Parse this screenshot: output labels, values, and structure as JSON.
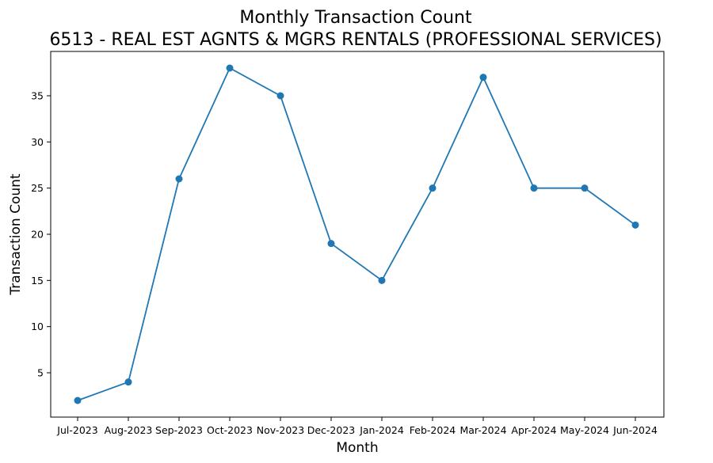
{
  "chart_data": {
    "type": "line",
    "title": "Monthly Transaction Count",
    "subtitle": "6513 - REAL EST AGNTS & MGRS RENTALS (PROFESSIONAL SERVICES)",
    "xlabel": "Month",
    "ylabel": "Transaction Count",
    "categories": [
      "Jul-2023",
      "Aug-2023",
      "Sep-2023",
      "Oct-2023",
      "Nov-2023",
      "Dec-2023",
      "Jan-2024",
      "Feb-2024",
      "Mar-2024",
      "Apr-2024",
      "May-2024",
      "Jun-2024"
    ],
    "series": [
      {
        "values": [
          2,
          4,
          26,
          38,
          35,
          19,
          15,
          25,
          37,
          25,
          25,
          21
        ],
        "color": "#1f77b4",
        "marker": "circle"
      }
    ],
    "yticks": [
      5,
      10,
      15,
      20,
      25,
      30,
      35
    ],
    "ylim": [
      0.2,
      39.8
    ],
    "grid": false,
    "legend": "none"
  }
}
